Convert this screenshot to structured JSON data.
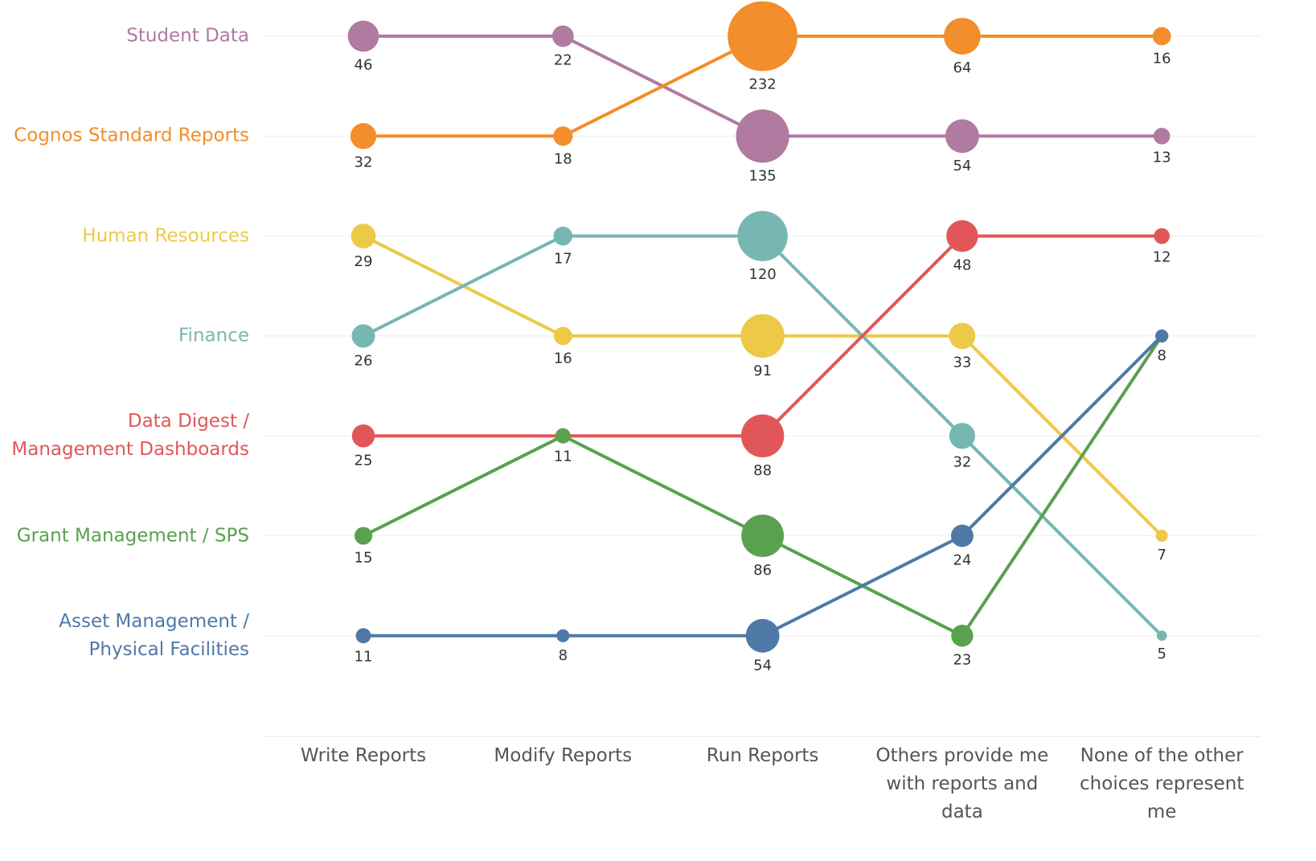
{
  "chart_data": {
    "type": "bump",
    "categories": [
      "Write Reports",
      "Modify Reports",
      "Run Reports",
      "Others provide me with reports and data",
      "None of the other choices represent me"
    ],
    "series": [
      {
        "name": "Student Data",
        "color": "#b07aa1",
        "values": [
          46,
          22,
          135,
          54,
          13
        ]
      },
      {
        "name": "Cognos Standard Reports",
        "color": "#f28e2b",
        "values": [
          32,
          18,
          232,
          64,
          16
        ]
      },
      {
        "name": "Human Resources",
        "color": "#edc948",
        "values": [
          29,
          16,
          91,
          33,
          7
        ]
      },
      {
        "name": "Finance",
        "color": "#76b7b2",
        "values": [
          26,
          17,
          120,
          32,
          5
        ]
      },
      {
        "name": "Data Digest / Management Dashboards",
        "color": "#e15759",
        "values": [
          25,
          11,
          88,
          48,
          12
        ]
      },
      {
        "name": "Grant Management / SPS",
        "color": "#59a14f",
        "values": [
          15,
          11,
          86,
          23,
          8
        ]
      },
      {
        "name": "Asset Management / Physical Facilities",
        "color": "#4e79a7",
        "values": [
          11,
          8,
          54,
          24,
          8
        ]
      }
    ]
  }
}
